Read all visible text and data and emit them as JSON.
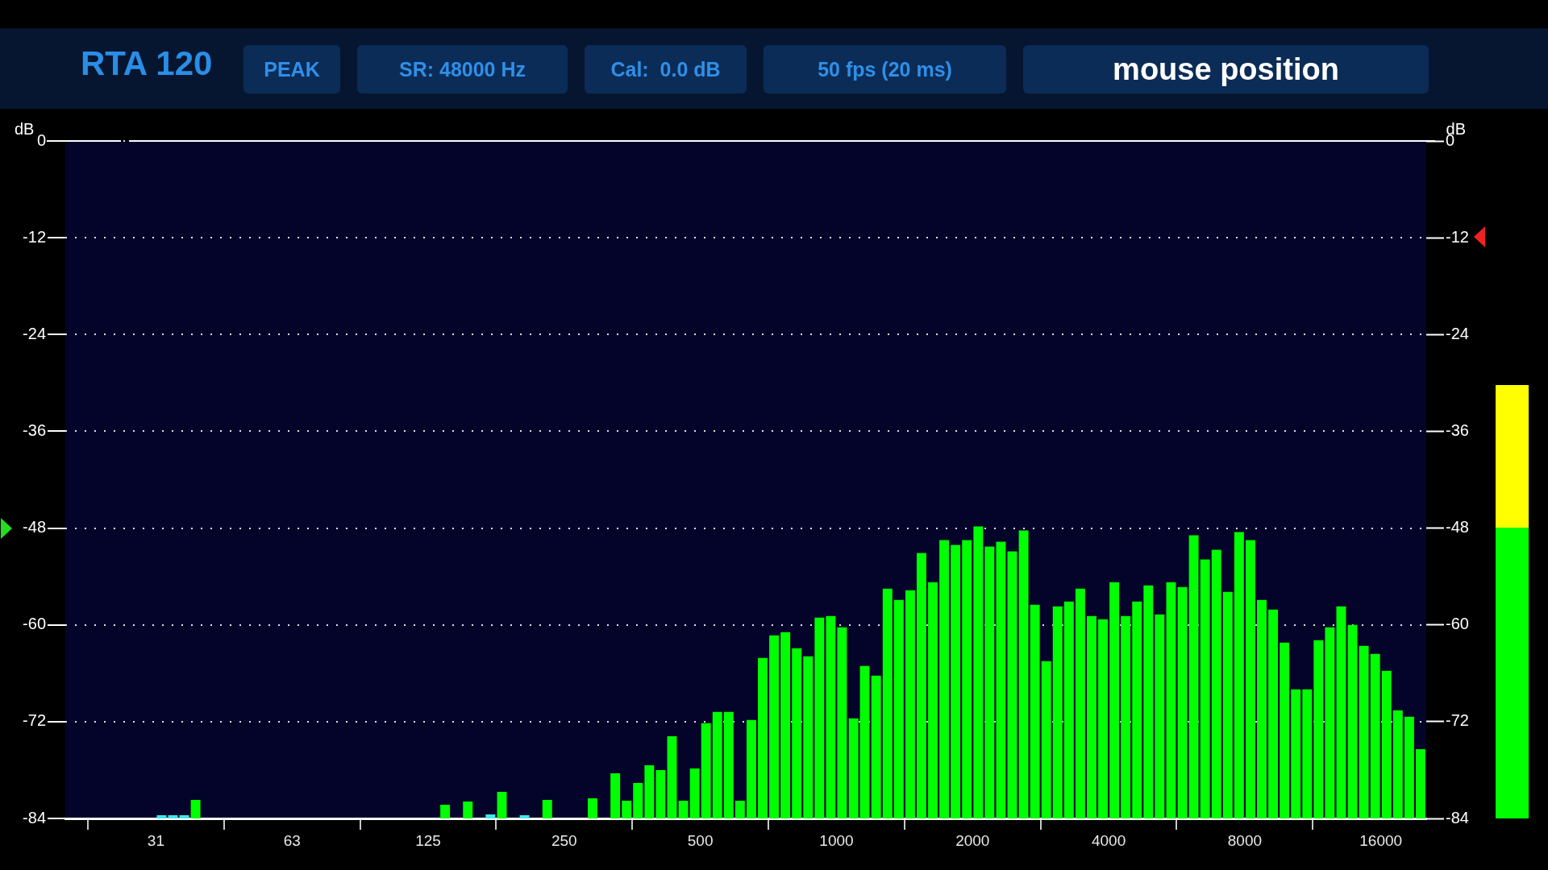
{
  "chart_data": {
    "type": "bar",
    "title": "RTA 120",
    "annotations": [
      "PEAK",
      "SR: 48000 Hz",
      "Cal:  0.0 dB",
      "50 fps (20 ms)",
      "mouse position"
    ],
    "ylabel": "dB",
    "y2label": "dB",
    "log": "x",
    "grid": "y",
    "legend": false,
    "xlim": [
      19.7,
      20160
    ],
    "xticks": [
      {
        "value": 31.25,
        "label": "31"
      },
      {
        "value": 62.5,
        "label": "63"
      },
      125,
      250,
      500,
      1000,
      2000,
      4000,
      8000,
      16000
    ],
    "ylim": [
      -84,
      0
    ],
    "yticks": [
      -84,
      -72,
      -60,
      -48,
      -36,
      -24,
      -12,
      0
    ],
    "y2lim": [
      -84,
      0
    ],
    "y2ticks": [
      -84,
      -72,
      -60,
      -48,
      -36,
      -24,
      -12,
      0
    ],
    "series": [
      {
        "colors": [
          "#40e8f0",
          "#40e8f0",
          "#40e8f0",
          "#00ff00",
          "#00ff00",
          "#00ff00",
          "#40e8f0",
          "#00ff00",
          "#40e8f0",
          "#00ff00",
          "#00ff00",
          "#00ff00",
          "#00ff00",
          "#00ff00",
          "#00ff00",
          "#00ff00",
          "#00ff00",
          "#00ff00",
          "#00ff00",
          "#00ff00",
          "#00ff00",
          "#00ff00",
          "#00ff00",
          "#00ff00",
          "#00ff00",
          "#00ff00",
          "#00ff00",
          "#00ff00",
          "#00ff00",
          "#00ff00",
          "#00ff00",
          "#00ff00",
          "#00ff00",
          "#00ff00",
          "#00ff00",
          "#00ff00",
          "#00ff00",
          "#00ff00",
          "#00ff00",
          "#00ff00",
          "#00ff00",
          "#00ff00",
          "#00ff00",
          "#00ff00",
          "#00ff00",
          "#00ff00",
          "#00ff00",
          "#00ff00",
          "#00ff00",
          "#00ff00",
          "#00ff00",
          "#00ff00",
          "#00ff00",
          "#00ff00",
          "#00ff00",
          "#00ff00",
          "#00ff00",
          "#00ff00",
          "#00ff00",
          "#00ff00",
          "#00ff00",
          "#00ff00",
          "#00ff00",
          "#00ff00",
          "#00ff00",
          "#00ff00",
          "#00ff00",
          "#00ff00",
          "#00ff00",
          "#00ff00",
          "#00ff00",
          "#00ff00",
          "#00ff00",
          "#00ff00",
          "#00ff00",
          "#00ff00",
          "#00ff00",
          "#00ff00",
          "#00ff00",
          "#00ff00",
          "#00ff00",
          "#00ff00",
          "#00ff00"
        ],
        "x": [
          32.17,
          34.08,
          36.1,
          38.25,
          136.3,
          153.0,
          171.7,
          182.0,
          204.2,
          229.3,
          288.8,
          324.2,
          343.5,
          363.9,
          385.6,
          408.5,
          432.8,
          458.5,
          485.8,
          514.7,
          545.3,
          577.7,
          612.0,
          648.4,
          687.0,
          727.8,
          771.1,
          817.0,
          865.5,
          917.0,
          971.5,
          1029,
          1091,
          1155,
          1224,
          1297,
          1374,
          1456,
          1542,
          1634,
          1731,
          1834,
          1943,
          2059,
          2181,
          2311,
          2448,
          2594,
          2748,
          2911,
          3084,
          3268,
          3462,
          3668,
          3886,
          4117,
          4362,
          4621,
          4896,
          5187,
          5496,
          5823,
          6169,
          6536,
          6924,
          7336,
          7772,
          8234,
          8724,
          9243,
          9792,
          10375,
          10992,
          11645,
          12337,
          13071,
          13849,
          14672,
          15545,
          16469,
          17448,
          18486,
          19585
        ],
        "base": [
          -84,
          -84,
          -84,
          -84,
          -84,
          -84,
          -84,
          -84,
          -84,
          -84,
          -84,
          -84,
          -84,
          -84,
          -84,
          -84,
          -84,
          -84,
          -84,
          -84,
          -84,
          -84,
          -84,
          -84,
          -84,
          -84,
          -84,
          -84,
          -84,
          -84,
          -84,
          -84,
          -84,
          -84,
          -84,
          -84,
          -84,
          -84,
          -84,
          -84,
          -84,
          -84,
          -84,
          -84,
          -84,
          -84,
          -84,
          -84,
          -84,
          -84,
          -84,
          -84,
          -84,
          -84,
          -84,
          -84,
          -84,
          -84,
          -84,
          -84,
          -84,
          -84,
          -84,
          -84,
          -84,
          -84,
          -84,
          -84,
          -84,
          -84,
          -84,
          -84,
          -84,
          -84,
          -84,
          -84,
          -84,
          -84,
          -84,
          -84,
          -84,
          -84,
          -84
        ],
        "values": [
          0.4,
          0.4,
          0.4,
          2.3,
          1.7,
          2.1,
          0.5,
          3.3,
          0.4,
          2.3,
          2.5,
          5.6,
          2.2,
          4.4,
          6.6,
          6.0,
          10.2,
          2.2,
          6.2,
          11.8,
          13.2,
          13.2,
          2.2,
          12.2,
          19.9,
          22.7,
          23.1,
          21.1,
          20.1,
          24.9,
          25.1,
          23.7,
          12.4,
          18.9,
          17.7,
          28.5,
          27.1,
          28.3,
          32.9,
          29.3,
          34.5,
          33.9,
          34.5,
          36.2,
          33.7,
          34.3,
          33.1,
          35.7,
          26.5,
          19.5,
          26.3,
          26.9,
          28.5,
          25.1,
          24.7,
          29.3,
          25.1,
          26.9,
          28.9,
          25.3,
          29.3,
          28.7,
          35.1,
          32.1,
          33.3,
          28.1,
          35.5,
          34.5,
          27.1,
          25.9,
          21.8,
          16.0,
          16.0,
          22.1,
          23.7,
          26.3,
          24.0,
          21.4,
          20.4,
          18.3,
          13.4,
          12.6,
          8.6
        ]
      }
    ]
  }
}
